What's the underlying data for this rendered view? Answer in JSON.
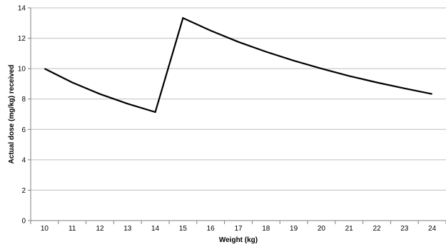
{
  "chart_data": {
    "type": "line",
    "title": "",
    "xlabel": "Weight (kg)",
    "ylabel": "Actual dose (mg/kg) received",
    "categories": [
      "10",
      "11",
      "12",
      "13",
      "14",
      "15",
      "16",
      "17",
      "18",
      "19",
      "20",
      "21",
      "22",
      "23",
      "24"
    ],
    "series": [
      {
        "values": [
          10.0,
          9.09,
          8.33,
          7.69,
          7.14,
          13.33,
          12.5,
          11.76,
          11.11,
          10.53,
          10.0,
          9.52,
          9.09,
          8.7,
          8.33
        ]
      }
    ],
    "ylim": [
      0,
      14
    ],
    "yticks": [
      0,
      2,
      4,
      6,
      8,
      10,
      12,
      14
    ],
    "grid": true,
    "legend": "none",
    "colors": {
      "line": "#000000",
      "grid": "#bfbfbf",
      "axis": "#808080"
    }
  }
}
